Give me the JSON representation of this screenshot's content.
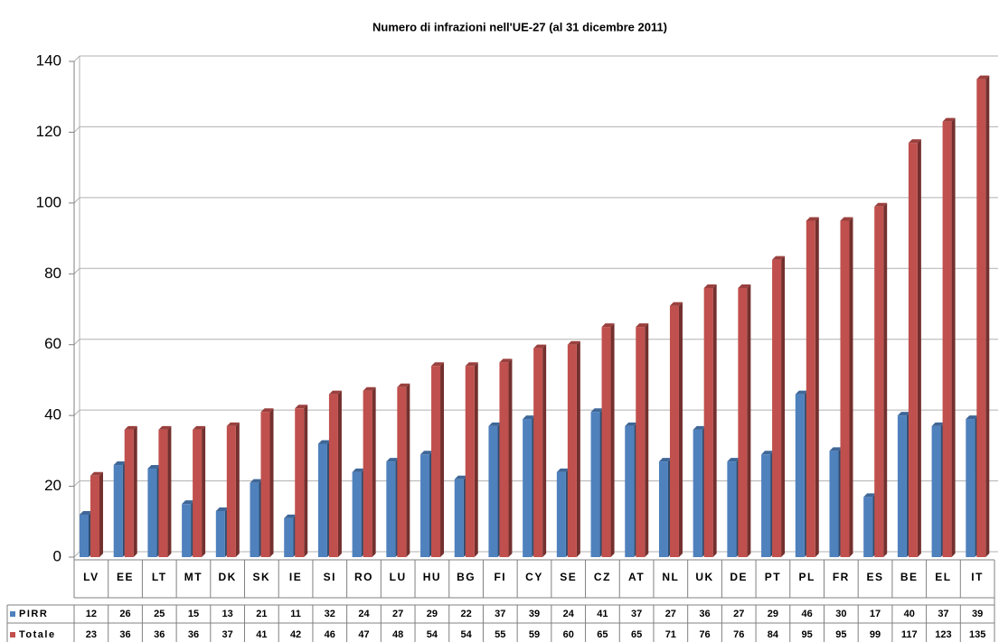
{
  "chart_data": {
    "type": "bar",
    "title": "Numero di infrazioni nell'UE-27 (al 31 dicembre 2011)",
    "categories": [
      "LV",
      "EE",
      "LT",
      "MT",
      "DK",
      "SK",
      "IE",
      "SI",
      "RO",
      "LU",
      "HU",
      "BG",
      "FI",
      "CY",
      "SE",
      "CZ",
      "AT",
      "NL",
      "UK",
      "DE",
      "PT",
      "PL",
      "FR",
      "ES",
      "BE",
      "EL",
      "IT"
    ],
    "series": [
      {
        "name": "PIRR",
        "color": "#4f81bd",
        "values": [
          12,
          26,
          25,
          15,
          13,
          21,
          11,
          32,
          24,
          27,
          29,
          22,
          37,
          39,
          24,
          41,
          37,
          27,
          36,
          27,
          29,
          46,
          30,
          17,
          40,
          37,
          39
        ]
      },
      {
        "name": "Totale",
        "color": "#c0504d",
        "values": [
          23,
          36,
          36,
          36,
          37,
          41,
          42,
          46,
          47,
          48,
          54,
          54,
          55,
          59,
          60,
          65,
          65,
          71,
          76,
          76,
          84,
          95,
          95,
          99,
          117,
          123,
          135
        ]
      }
    ],
    "ylim": [
      0,
      140
    ],
    "yticks": [
      0,
      20,
      40,
      60,
      80,
      100,
      120,
      140
    ],
    "grid": true
  }
}
